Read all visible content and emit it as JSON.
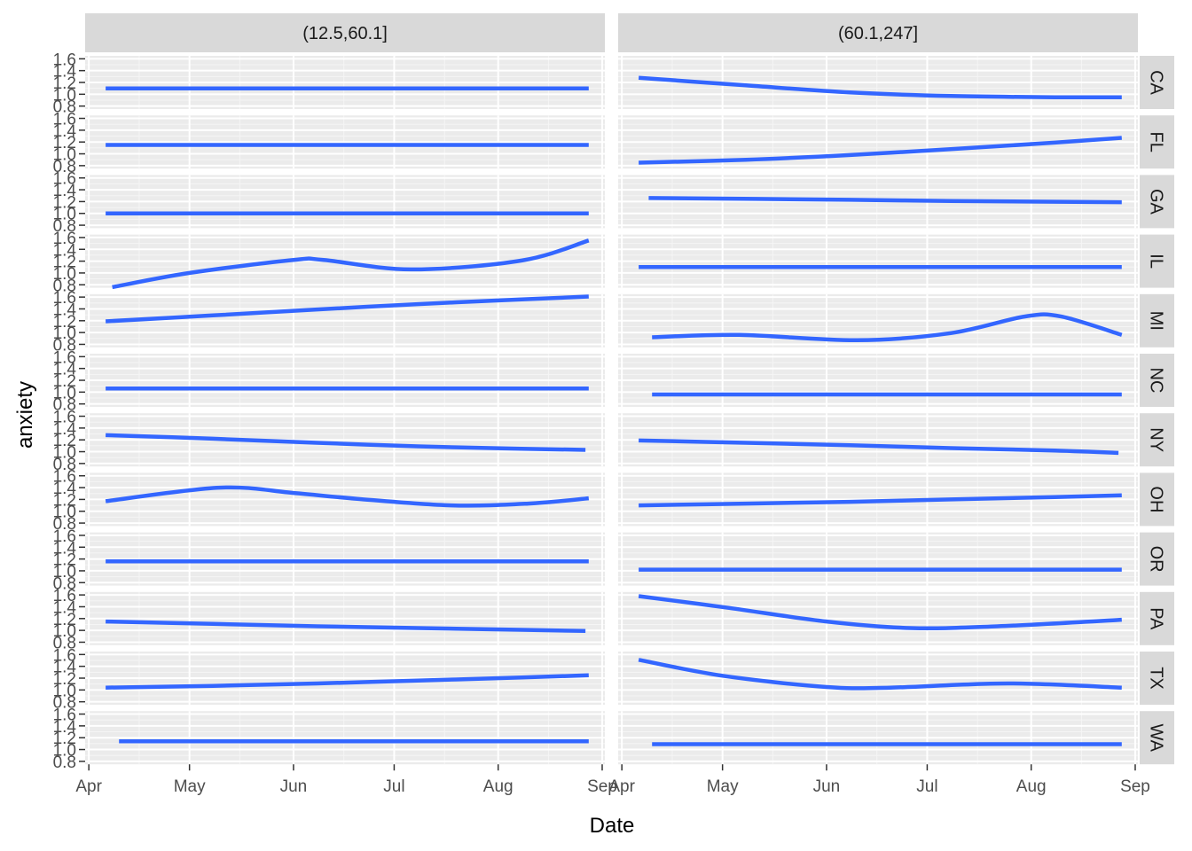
{
  "chart_data": {
    "type": "line",
    "xlabel": "Date",
    "ylabel": "anxiety",
    "x_ticks": [
      "Apr",
      "May",
      "Jun",
      "Jul",
      "Aug",
      "Sep"
    ],
    "x_tick_dates": [
      "2020-04-01",
      "2020-05-01",
      "2020-06-01",
      "2020-07-01",
      "2020-08-01",
      "2020-09-01"
    ],
    "y_ticks": [
      "0.8",
      "1.0",
      "1.2",
      "1.4",
      "1.6"
    ],
    "ylim": [
      0.75,
      1.65
    ],
    "columns": [
      "(12.5,60.1]",
      "(60.1,247]"
    ],
    "rows": [
      "CA",
      "FL",
      "GA",
      "IL",
      "MI",
      "NC",
      "NY",
      "OH",
      "OR",
      "PA",
      "TX",
      "WA"
    ],
    "line_color": "#3366FF",
    "panel_background": "#EBEBEB",
    "strip_background": "#D9D9D9",
    "grid": true,
    "panels": [
      {
        "row": "CA",
        "col": "(12.5,60.1]",
        "points": [
          [
            "2020-04-06",
            1.1
          ],
          [
            "2020-08-28",
            1.1
          ]
        ]
      },
      {
        "row": "CA",
        "col": "(60.1,247]",
        "points": [
          [
            "2020-04-06",
            1.28
          ],
          [
            "2020-05-08",
            1.15
          ],
          [
            "2020-06-08",
            1.03
          ],
          [
            "2020-07-08",
            0.97
          ],
          [
            "2020-08-08",
            0.95
          ],
          [
            "2020-08-28",
            0.95
          ]
        ]
      },
      {
        "row": "FL",
        "col": "(12.5,60.1]",
        "points": [
          [
            "2020-04-06",
            1.15
          ],
          [
            "2020-08-28",
            1.15
          ]
        ]
      },
      {
        "row": "FL",
        "col": "(60.1,247]",
        "points": [
          [
            "2020-04-06",
            0.85
          ],
          [
            "2020-05-08",
            0.9
          ],
          [
            "2020-06-08",
            0.98
          ],
          [
            "2020-07-08",
            1.08
          ],
          [
            "2020-08-08",
            1.19
          ],
          [
            "2020-08-28",
            1.27
          ]
        ]
      },
      {
        "row": "GA",
        "col": "(12.5,60.1]",
        "points": [
          [
            "2020-04-06",
            1.0
          ],
          [
            "2020-08-28",
            1.0
          ]
        ]
      },
      {
        "row": "GA",
        "col": "(60.1,247]",
        "points": [
          [
            "2020-04-09",
            1.26
          ],
          [
            "2020-06-08",
            1.23
          ],
          [
            "2020-07-08",
            1.21
          ],
          [
            "2020-08-28",
            1.19
          ]
        ]
      },
      {
        "row": "IL",
        "col": "(12.5,60.1]",
        "points": [
          [
            "2020-04-08",
            0.76
          ],
          [
            "2020-05-01",
            1.0
          ],
          [
            "2020-06-01",
            1.22
          ],
          [
            "2020-06-10",
            1.22
          ],
          [
            "2020-07-06",
            1.06
          ],
          [
            "2020-08-08",
            1.21
          ],
          [
            "2020-08-28",
            1.55
          ]
        ]
      },
      {
        "row": "IL",
        "col": "(60.1,247]",
        "points": [
          [
            "2020-04-06",
            1.1
          ],
          [
            "2020-08-28",
            1.1
          ]
        ]
      },
      {
        "row": "MI",
        "col": "(12.5,60.1]",
        "points": [
          [
            "2020-04-06",
            1.19
          ],
          [
            "2020-05-08",
            1.29
          ],
          [
            "2020-06-08",
            1.39
          ],
          [
            "2020-07-08",
            1.48
          ],
          [
            "2020-08-08",
            1.56
          ],
          [
            "2020-08-28",
            1.61
          ]
        ]
      },
      {
        "row": "MI",
        "col": "(60.1,247]",
        "points": [
          [
            "2020-04-10",
            0.92
          ],
          [
            "2020-05-06",
            0.96
          ],
          [
            "2020-06-10",
            0.87
          ],
          [
            "2020-07-08",
            0.99
          ],
          [
            "2020-07-30",
            1.27
          ],
          [
            "2020-08-10",
            1.27
          ],
          [
            "2020-08-28",
            0.96
          ]
        ]
      },
      {
        "row": "NC",
        "col": "(12.5,60.1]",
        "points": [
          [
            "2020-04-06",
            1.06
          ],
          [
            "2020-08-28",
            1.06
          ]
        ]
      },
      {
        "row": "NC",
        "col": "(60.1,247]",
        "points": [
          [
            "2020-04-10",
            0.96
          ],
          [
            "2020-08-28",
            0.96
          ]
        ]
      },
      {
        "row": "NY",
        "col": "(12.5,60.1]",
        "points": [
          [
            "2020-04-06",
            1.28
          ],
          [
            "2020-05-08",
            1.22
          ],
          [
            "2020-06-08",
            1.15
          ],
          [
            "2020-07-08",
            1.09
          ],
          [
            "2020-08-08",
            1.05
          ],
          [
            "2020-08-27",
            1.03
          ]
        ]
      },
      {
        "row": "NY",
        "col": "(60.1,247]",
        "points": [
          [
            "2020-04-06",
            1.19
          ],
          [
            "2020-05-08",
            1.15
          ],
          [
            "2020-06-08",
            1.11
          ],
          [
            "2020-07-08",
            1.06
          ],
          [
            "2020-08-08",
            1.02
          ],
          [
            "2020-08-27",
            0.98
          ]
        ]
      },
      {
        "row": "OH",
        "col": "(12.5,60.1]",
        "points": [
          [
            "2020-04-06",
            1.17
          ],
          [
            "2020-05-10",
            1.4
          ],
          [
            "2020-06-01",
            1.31
          ],
          [
            "2020-06-20",
            1.21
          ],
          [
            "2020-07-18",
            1.1
          ],
          [
            "2020-08-10",
            1.13
          ],
          [
            "2020-08-28",
            1.22
          ]
        ]
      },
      {
        "row": "OH",
        "col": "(60.1,247]",
        "points": [
          [
            "2020-04-06",
            1.1
          ],
          [
            "2020-05-08",
            1.13
          ],
          [
            "2020-06-08",
            1.16
          ],
          [
            "2020-07-08",
            1.2
          ],
          [
            "2020-08-08",
            1.24
          ],
          [
            "2020-08-28",
            1.27
          ]
        ]
      },
      {
        "row": "OR",
        "col": "(12.5,60.1]",
        "points": [
          [
            "2020-04-06",
            1.16
          ],
          [
            "2020-08-28",
            1.16
          ]
        ]
      },
      {
        "row": "OR",
        "col": "(60.1,247]",
        "points": [
          [
            "2020-04-06",
            1.02
          ],
          [
            "2020-08-28",
            1.02
          ]
        ]
      },
      {
        "row": "PA",
        "col": "(12.5,60.1]",
        "points": [
          [
            "2020-04-06",
            1.15
          ],
          [
            "2020-05-08",
            1.11
          ],
          [
            "2020-06-08",
            1.07
          ],
          [
            "2020-07-08",
            1.04
          ],
          [
            "2020-08-08",
            1.01
          ],
          [
            "2020-08-27",
            0.99
          ]
        ]
      },
      {
        "row": "PA",
        "col": "(60.1,247]",
        "points": [
          [
            "2020-04-06",
            1.58
          ],
          [
            "2020-05-03",
            1.38
          ],
          [
            "2020-06-01",
            1.15
          ],
          [
            "2020-06-26",
            1.04
          ],
          [
            "2020-07-22",
            1.07
          ],
          [
            "2020-08-28",
            1.18
          ]
        ]
      },
      {
        "row": "TX",
        "col": "(12.5,60.1]",
        "points": [
          [
            "2020-04-06",
            1.04
          ],
          [
            "2020-05-08",
            1.07
          ],
          [
            "2020-06-08",
            1.11
          ],
          [
            "2020-07-08",
            1.16
          ],
          [
            "2020-08-08",
            1.21
          ],
          [
            "2020-08-28",
            1.25
          ]
        ]
      },
      {
        "row": "TX",
        "col": "(60.1,247]",
        "points": [
          [
            "2020-04-06",
            1.51
          ],
          [
            "2020-05-01",
            1.24
          ],
          [
            "2020-06-01",
            1.05
          ],
          [
            "2020-06-20",
            1.04
          ],
          [
            "2020-07-25",
            1.11
          ],
          [
            "2020-08-28",
            1.04
          ]
        ]
      },
      {
        "row": "WA",
        "col": "(12.5,60.1]",
        "points": [
          [
            "2020-04-10",
            1.14
          ],
          [
            "2020-08-28",
            1.14
          ]
        ]
      },
      {
        "row": "WA",
        "col": "(60.1,247]",
        "points": [
          [
            "2020-04-10",
            1.09
          ],
          [
            "2020-08-28",
            1.09
          ]
        ]
      }
    ]
  }
}
